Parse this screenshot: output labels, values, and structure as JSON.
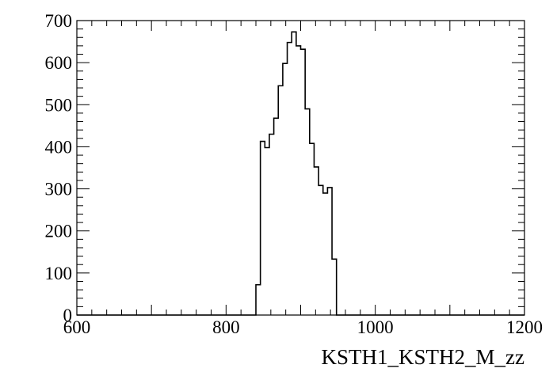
{
  "chart_data": {
    "type": "histogram",
    "title": "",
    "xlabel": "KSTH1_KSTH2_M_zz",
    "ylabel": "",
    "xlim": [
      600,
      1200
    ],
    "ylim": [
      0,
      700
    ],
    "grid": false,
    "x_ticks": [
      600,
      800,
      1000,
      1200
    ],
    "y_ticks": [
      0,
      100,
      200,
      300,
      400,
      500,
      600,
      700
    ],
    "x_tick_labels": [
      "600",
      "800",
      "1000",
      "1200"
    ],
    "y_tick_labels": [
      "0",
      "100",
      "200",
      "300",
      "400",
      "500",
      "600",
      "700"
    ],
    "bin_edges": [
      600,
      840,
      846,
      852,
      858,
      864,
      870,
      876,
      882,
      888,
      894,
      900,
      906,
      912,
      918,
      924,
      930,
      936,
      942,
      948,
      1200
    ],
    "counts": [
      0,
      72,
      413,
      398,
      430,
      468,
      545,
      598,
      648,
      673,
      640,
      632,
      490,
      408,
      352,
      308,
      290,
      303,
      133,
      0
    ]
  }
}
